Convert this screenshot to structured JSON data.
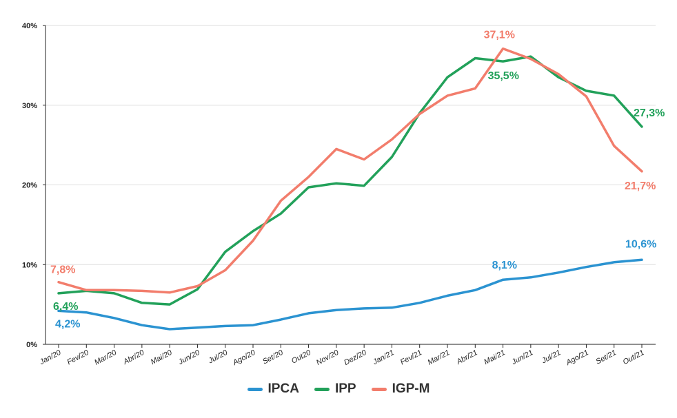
{
  "chart_data": {
    "type": "line",
    "title": "",
    "xlabel": "",
    "ylabel": "",
    "ylim": [
      0,
      40
    ],
    "y_ticks": [
      "0%",
      "10%",
      "20%",
      "30%",
      "40%"
    ],
    "y_tick_values": [
      0,
      10,
      20,
      30,
      40
    ],
    "grid": true,
    "legend_position": "bottom-center",
    "categories": [
      "Jan/20",
      "Fev/20",
      "Mar/20",
      "Abr/20",
      "Mai/20",
      "Jun/20",
      "Jul/20",
      "Ago/20",
      "Set/20",
      "Out20",
      "Nov/20",
      "Dez/20",
      "Jan/21",
      "Fev/21",
      "Mar/21",
      "Abr/21",
      "Mai/21",
      "Jun/21",
      "Jul/21",
      "Ago/21",
      "Set/21",
      "Out/21"
    ],
    "series": [
      {
        "name": "IPCA",
        "color": "#2b93d1",
        "values": [
          4.2,
          4.0,
          3.3,
          2.4,
          1.9,
          2.1,
          2.3,
          2.4,
          3.1,
          3.9,
          4.3,
          4.5,
          4.6,
          5.2,
          6.1,
          6.8,
          8.1,
          8.4,
          9.0,
          9.7,
          10.3,
          10.6
        ],
        "labels": [
          {
            "index": 0,
            "text": "4,2%"
          },
          {
            "index": 16,
            "text": "8,1%"
          },
          {
            "index": 21,
            "text": "10,6%"
          }
        ]
      },
      {
        "name": "IPP",
        "color": "#22a15a",
        "values": [
          6.4,
          6.7,
          6.4,
          5.2,
          5.0,
          6.9,
          11.6,
          14.2,
          16.4,
          19.7,
          20.2,
          19.9,
          23.5,
          29.0,
          33.5,
          35.9,
          35.5,
          36.1,
          33.5,
          31.8,
          31.2,
          27.3
        ],
        "labels": [
          {
            "index": 0,
            "text": "6,4%"
          },
          {
            "index": 16,
            "text": "35,5%"
          },
          {
            "index": 21,
            "text": "27,3%"
          }
        ]
      },
      {
        "name": "IGP-M",
        "color": "#f27d6c",
        "values": [
          7.8,
          6.8,
          6.8,
          6.7,
          6.5,
          7.3,
          9.3,
          13.0,
          18.0,
          21.0,
          24.5,
          23.2,
          25.7,
          28.9,
          31.2,
          32.1,
          37.1,
          35.8,
          33.9,
          31.1,
          24.9,
          21.7
        ],
        "labels": [
          {
            "index": 0,
            "text": "7,8%"
          },
          {
            "index": 16,
            "text": "37,1%"
          },
          {
            "index": 21,
            "text": "21,7%"
          }
        ]
      }
    ]
  }
}
